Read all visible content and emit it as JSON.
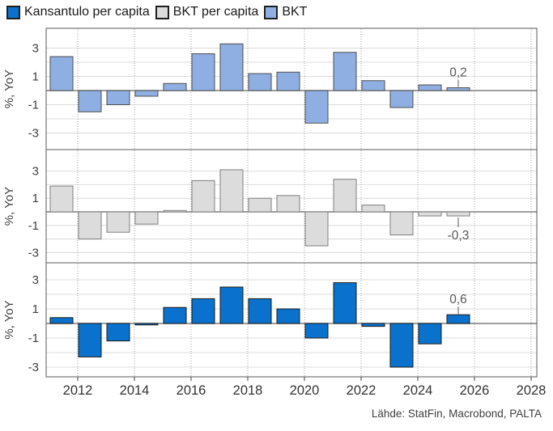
{
  "legend": {
    "items": [
      {
        "id": "kansantulo-per-capita",
        "label": "Kansantulo per capita",
        "color": "#0A72CC"
      },
      {
        "id": "bkt-per-capita",
        "label": "BKT per capita",
        "color": "#DCDCDC"
      },
      {
        "id": "bkt",
        "label": "BKT",
        "color": "#8FAFE3"
      }
    ]
  },
  "axes": {
    "ylabel": "%, YoY",
    "yticks": [
      3,
      1,
      -1,
      -3
    ],
    "xticks": [
      2012,
      2014,
      2016,
      2018,
      2020,
      2022,
      2024,
      2026,
      2028
    ]
  },
  "source": "Lähde: StatFin, Macrobond, PALTA",
  "chart_data": [
    {
      "type": "bar",
      "title": "BKT",
      "ylabel": "%, YoY",
      "ylim": [
        -4.3,
        4.4
      ],
      "grid": true,
      "color": "#8FAFE3",
      "categories": [
        2011,
        2012,
        2013,
        2014,
        2015,
        2016,
        2017,
        2018,
        2019,
        2020,
        2021,
        2022,
        2023,
        2024,
        2025
      ],
      "values": [
        2.4,
        -1.5,
        -1.0,
        -0.4,
        0.5,
        2.6,
        3.3,
        1.2,
        1.3,
        -2.3,
        2.7,
        0.7,
        -1.2,
        0.4,
        0.2
      ],
      "annotation": {
        "category": 2025,
        "value": 0.2,
        "text": "0,2"
      }
    },
    {
      "type": "bar",
      "title": "BKT per capita",
      "ylabel": "%, YoY",
      "ylim": [
        -3.8,
        4.6
      ],
      "grid": true,
      "color": "#DCDCDC",
      "categories": [
        2011,
        2012,
        2013,
        2014,
        2015,
        2016,
        2017,
        2018,
        2019,
        2020,
        2021,
        2022,
        2023,
        2024,
        2025
      ],
      "values": [
        1.9,
        -2.0,
        -1.5,
        -0.9,
        0.1,
        2.3,
        3.1,
        1.0,
        1.2,
        -2.5,
        2.4,
        0.5,
        -1.7,
        -0.3,
        -0.3
      ],
      "annotation": {
        "category": 2025,
        "value": -0.3,
        "text": "-0,3"
      }
    },
    {
      "type": "bar",
      "title": "Kansantulo per capita",
      "ylabel": "%, YoY",
      "ylim": [
        -4.2,
        3.9
      ],
      "grid": true,
      "color": "#0A72CC",
      "categories": [
        2011,
        2012,
        2013,
        2014,
        2015,
        2016,
        2017,
        2018,
        2019,
        2020,
        2021,
        2022,
        2023,
        2024,
        2025
      ],
      "values": [
        0.4,
        -2.3,
        -1.2,
        -0.1,
        1.1,
        1.7,
        2.5,
        1.7,
        1.0,
        -1.0,
        2.8,
        -0.2,
        -3.0,
        -1.4,
        0.6
      ],
      "annotation": {
        "category": 2025,
        "value": 0.6,
        "text": "0,6"
      }
    }
  ]
}
